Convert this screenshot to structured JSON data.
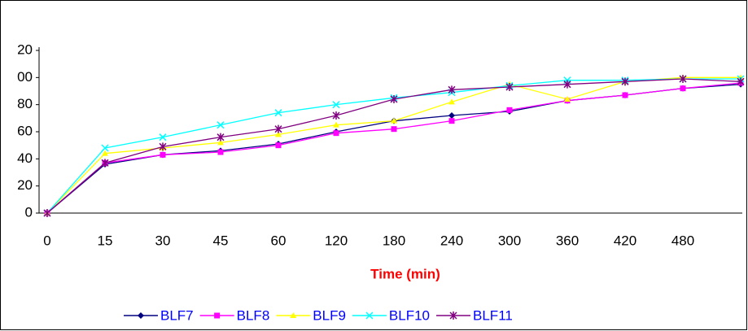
{
  "chart_data": {
    "type": "line",
    "x_label": "Time (min)",
    "categories": [
      "0",
      "15",
      "30",
      "45",
      "60",
      "120",
      "180",
      "240",
      "300",
      "360",
      "420",
      "480",
      null
    ],
    "ylim": [
      0,
      120
    ],
    "yticks": [
      0,
      20,
      40,
      60,
      80,
      {
        "value": 100,
        "label": "00"
      },
      {
        "value": 120,
        "label": "20"
      }
    ],
    "series": [
      {
        "name": "BLF7",
        "color": "#000080",
        "marker": "diamond",
        "values": [
          0,
          36,
          43,
          46,
          51,
          60,
          68,
          72,
          75,
          83,
          87,
          92,
          95
        ]
      },
      {
        "name": "BLF8",
        "color": "#ff00ff",
        "marker": "square",
        "values": [
          0,
          37,
          43,
          45,
          50,
          59,
          62,
          68,
          76,
          83,
          87,
          92,
          96
        ]
      },
      {
        "name": "BLF9",
        "color": "#ffff00",
        "marker": "triangle",
        "values": [
          0,
          44,
          48,
          52,
          58,
          65,
          68,
          82,
          95,
          84,
          97,
          100,
          100
        ]
      },
      {
        "name": "BLF10",
        "color": "#00ffff",
        "marker": "x",
        "values": [
          0,
          48,
          56,
          65,
          74,
          80,
          85,
          89,
          94,
          98,
          98,
          99,
          99
        ]
      },
      {
        "name": "BLF11",
        "color": "#800080",
        "marker": "star",
        "values": [
          0,
          37,
          49,
          56,
          62,
          72,
          84,
          91,
          93,
          95,
          97,
          99,
          97
        ]
      }
    ]
  }
}
